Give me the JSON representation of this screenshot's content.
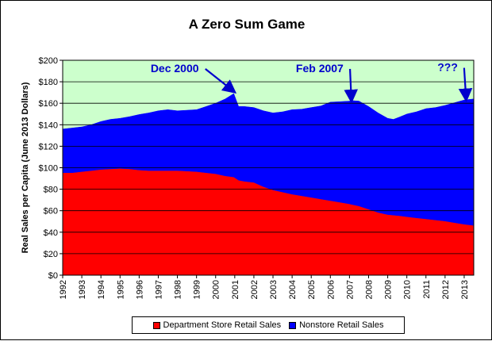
{
  "chart_data": {
    "type": "area",
    "stacked": true,
    "title": "A Zero Sum Game",
    "ylabel": "Real Sales per Capita (June 2013 Dollars)",
    "xlabel": "",
    "ylim": [
      0,
      200
    ],
    "xlim": [
      1992,
      2013.5
    ],
    "y_ticks": [
      "$0",
      "$20",
      "$40",
      "$60",
      "$80",
      "$100",
      "$120",
      "$140",
      "$160",
      "$180",
      "$200"
    ],
    "x_ticks": [
      "1992",
      "1993",
      "1994",
      "1995",
      "1996",
      "1997",
      "1998",
      "1999",
      "2000",
      "2001",
      "2002",
      "2003",
      "2004",
      "2005",
      "2006",
      "2007",
      "2008",
      "2009",
      "2010",
      "2011",
      "2012",
      "2013"
    ],
    "grid": "horizontal",
    "plot_background": "#ccffcc",
    "x": [
      1992,
      1992.5,
      1993,
      1993.5,
      1994,
      1994.5,
      1995,
      1995.5,
      1996,
      1996.5,
      1997,
      1997.5,
      1998,
      1998.5,
      1999,
      1999.5,
      2000,
      2000.5,
      2000.95,
      2001.2,
      2001.5,
      2002,
      2002.5,
      2003,
      2003.5,
      2004,
      2004.5,
      2005,
      2005.5,
      2006,
      2006.5,
      2007,
      2007.1,
      2007.5,
      2008,
      2008.5,
      2009,
      2009.3,
      2009.6,
      2010,
      2010.5,
      2011,
      2011.5,
      2012,
      2012.5,
      2013,
      2013.5
    ],
    "series": [
      {
        "name": "Department Store Retail Sales",
        "color": "#ff0000",
        "values": [
          95,
          95,
          96,
          97,
          98,
          98.5,
          99,
          98.5,
          97.5,
          97,
          97,
          97,
          97,
          96.5,
          96,
          95,
          94,
          92,
          91,
          88,
          87,
          86,
          82,
          79,
          77,
          75,
          73.5,
          72,
          70.5,
          69,
          67.5,
          66,
          65.5,
          64,
          61,
          58,
          56,
          55.5,
          55,
          54,
          53,
          52,
          51,
          50,
          48.5,
          47,
          46
        ]
      },
      {
        "name": "Nonstore Retail Sales",
        "color": "#0000ff",
        "values": [
          41,
          42,
          42,
          43,
          45,
          46.5,
          47,
          49,
          52,
          54,
          56,
          57,
          56,
          57,
          58,
          62,
          66,
          72,
          78,
          69,
          70,
          70,
          71,
          72,
          75,
          79,
          81,
          84,
          87,
          92,
          94,
          96,
          97,
          98,
          96,
          93,
          90,
          89.5,
          92,
          96,
          99,
          103,
          105,
          108,
          112,
          116,
          118
        ]
      }
    ],
    "annotations": [
      {
        "text": "Dec 2000",
        "x": 1996.6,
        "y": 189,
        "arrow_to": [
          2000.95,
          171
        ]
      },
      {
        "text": "Feb 2007",
        "x": 2004.2,
        "y": 189,
        "arrow_to": [
          2007.1,
          163
        ]
      },
      {
        "text": "???",
        "x": 2011.6,
        "y": 190,
        "arrow_to": [
          2013.1,
          164
        ]
      }
    ],
    "legend_position": "bottom",
    "legend": [
      "Department Store Retail Sales",
      "Nonstore Retail Sales"
    ]
  }
}
